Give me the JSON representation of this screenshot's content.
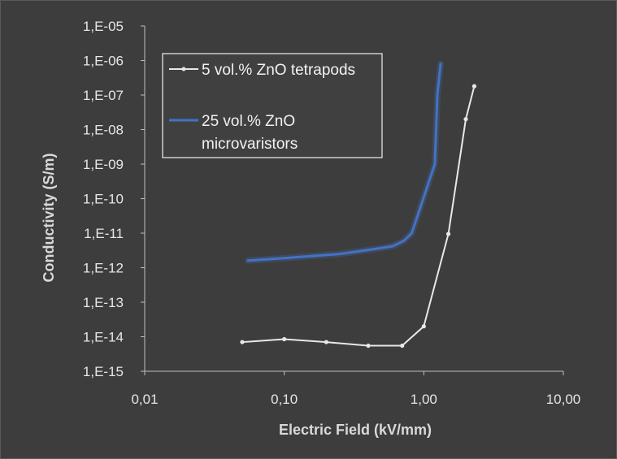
{
  "chart_data": {
    "type": "line",
    "xlabel": "Electric Field (kV/mm)",
    "ylabel": "Conductivity (S/m)",
    "x_scale": "log",
    "y_scale": "log",
    "xlim": [
      0.01,
      10
    ],
    "ylim": [
      1e-15,
      1e-05
    ],
    "x_ticks": [
      {
        "value": 0.01,
        "label": "0,01"
      },
      {
        "value": 0.1,
        "label": "0,10"
      },
      {
        "value": 1,
        "label": "1,00"
      },
      {
        "value": 10,
        "label": "10,00"
      }
    ],
    "y_ticks": [
      {
        "value": 1e-05,
        "label": "1,E-05"
      },
      {
        "value": 1e-06,
        "label": "1,E-06"
      },
      {
        "value": 1e-07,
        "label": "1,E-07"
      },
      {
        "value": 1e-08,
        "label": "1,E-08"
      },
      {
        "value": 1e-09,
        "label": "1,E-09"
      },
      {
        "value": 1e-10,
        "label": "1,E-10"
      },
      {
        "value": 1e-11,
        "label": "1,E-11"
      },
      {
        "value": 1e-12,
        "label": "1,E-12"
      },
      {
        "value": 1e-13,
        "label": "1,E-13"
      },
      {
        "value": 1e-14,
        "label": "1,E-14"
      },
      {
        "value": 1e-15,
        "label": "1,E-15"
      }
    ],
    "grid": false,
    "legend_position": "top-left",
    "series": [
      {
        "name": "5 vol.% ZnO tetrapods",
        "color": "#e8e8e8",
        "markers": true,
        "x": [
          0.05,
          0.1,
          0.2,
          0.4,
          0.7,
          1.0,
          1.5,
          2.0,
          2.3
        ],
        "y": [
          7e-15,
          8.5e-15,
          7e-15,
          5.5e-15,
          5.5e-15,
          2e-14,
          9.5e-12,
          2e-08,
          1.8e-07
        ]
      },
      {
        "name": "25 vol.% ZnO microvaristors",
        "color": "#4472c4",
        "markers": false,
        "x": [
          0.055,
          0.1,
          0.25,
          0.45,
          0.6,
          0.72,
          0.82,
          0.92,
          1.05,
          1.2,
          1.25,
          1.32
        ],
        "y": [
          1.6e-12,
          1.9e-12,
          2.5e-12,
          3.5e-12,
          4.2e-12,
          6e-12,
          1e-11,
          4e-11,
          2e-10,
          1e-09,
          1e-07,
          8e-07
        ]
      }
    ]
  }
}
